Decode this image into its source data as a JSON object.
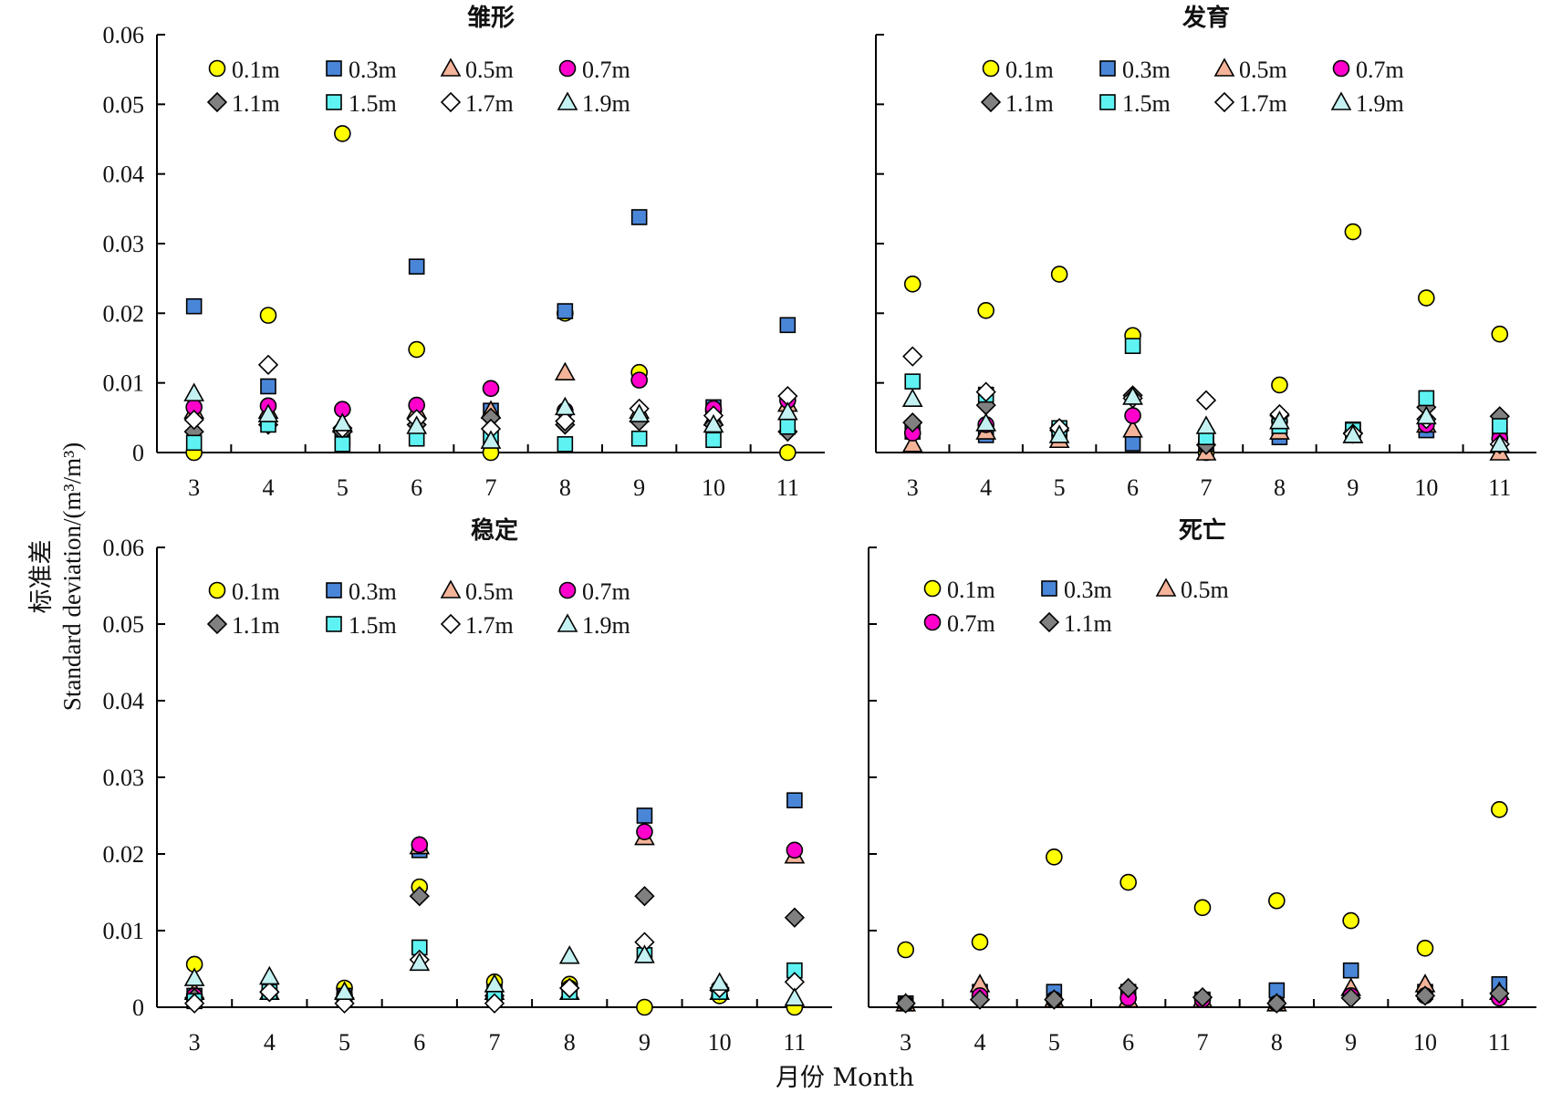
{
  "colors": {
    "0.1m": "#ffff00",
    "0.3m": "#4a86d8",
    "0.5m": "#f4b49a",
    "0.7m": "#ff00cc",
    "1.1m": "#808080",
    "1.5m": "#5ff2f2",
    "1.7m": "#ffffff",
    "1.9m": "#c4f2f2"
  },
  "shapes": {
    "0.1m": "circle",
    "0.3m": "square",
    "0.5m": "triangle",
    "0.7m": "circle",
    "1.1m": "diamond",
    "1.5m": "square",
    "1.7m": "diamond",
    "1.9m": "triangle"
  },
  "axes": {
    "xlabel": "月份 Month",
    "ylabel_cn": "标准差",
    "ylabel_en": "Standard deviation/(m³/m³)"
  },
  "chart_data": [
    {
      "type": "scatter",
      "title": "雏形",
      "x": [
        3,
        4,
        5,
        6,
        7,
        8,
        9,
        10,
        11
      ],
      "ylim": [
        0,
        0.06
      ],
      "yticks": [
        "0",
        "0.01",
        "0.02",
        "0.03",
        "0.04",
        "0.05",
        "0.06"
      ],
      "legend": "top",
      "series": [
        {
          "name": "0.1m",
          "values": [
            0.0,
            0.0197,
            0.0458,
            0.0148,
            0.0,
            0.02,
            0.0115,
            0.006,
            0.0
          ]
        },
        {
          "name": "0.3m",
          "values": [
            0.021,
            0.0095,
            0.002,
            0.0267,
            0.006,
            0.0203,
            0.0338,
            0.0065,
            0.0183
          ]
        },
        {
          "name": "0.5m",
          "values": [
            0.006,
            0.006,
            0.004,
            0.006,
            0.006,
            0.0115,
            0.006,
            0.005,
            0.007
          ]
        },
        {
          "name": "0.7m",
          "values": [
            0.0065,
            0.0067,
            0.0062,
            0.0068,
            0.0092,
            0.006,
            0.0104,
            0.0063,
            0.0075
          ]
        },
        {
          "name": "1.1m",
          "values": [
            0.003,
            0.004,
            0.003,
            0.004,
            0.005,
            0.004,
            0.0045,
            0.004,
            0.003
          ]
        },
        {
          "name": "1.5m",
          "values": [
            0.0014,
            0.004,
            0.0012,
            0.002,
            0.002,
            0.0012,
            0.002,
            0.0018,
            0.0037
          ]
        },
        {
          "name": "1.7m",
          "values": [
            0.0047,
            0.0126,
            0.0035,
            0.0048,
            0.0034,
            0.0045,
            0.0063,
            0.0053,
            0.0081
          ]
        },
        {
          "name": "1.9m",
          "values": [
            0.0085,
            0.0055,
            0.0042,
            0.0038,
            0.0017,
            0.0065,
            0.0055,
            0.004,
            0.0058
          ]
        }
      ]
    },
    {
      "type": "scatter",
      "title": "发育",
      "x": [
        3,
        4,
        5,
        6,
        7,
        8,
        9,
        10,
        11
      ],
      "ylim": [
        0,
        0.06
      ],
      "legend": "top",
      "series": [
        {
          "name": "0.1m",
          "values": [
            0.0242,
            0.0204,
            0.0256,
            0.0168,
            0.0,
            0.0097,
            0.0317,
            0.0222,
            0.017
          ]
        },
        {
          "name": "0.3m",
          "values": [
            0.003,
            0.0025,
            0.003,
            0.0013,
            0.0012,
            0.0022,
            0.0033,
            0.0032,
            0.0023
          ]
        },
        {
          "name": "0.5m",
          "values": [
            0.0012,
            0.003,
            0.0018,
            0.0033,
            0.0,
            0.003,
            0.0025,
            0.004,
            0.0
          ]
        },
        {
          "name": "0.7m",
          "values": [
            0.0028,
            0.004,
            0.0035,
            0.0053,
            0.0012,
            0.0045,
            0.003,
            0.004,
            0.002
          ]
        },
        {
          "name": "1.1m",
          "values": [
            0.0043,
            0.0068,
            0.0032,
            0.0082,
            0.0011,
            0.0053,
            0.0028,
            0.0065,
            0.0052
          ]
        },
        {
          "name": "1.5m",
          "values": [
            0.0102,
            0.0083,
            0.0035,
            0.0153,
            0.0022,
            0.0038,
            0.0032,
            0.0078,
            0.0038
          ]
        },
        {
          "name": "1.7m",
          "values": [
            0.0138,
            0.0087,
            0.0035,
            0.0078,
            0.0075,
            0.0055,
            0.0027,
            0.0048,
            0.0012
          ]
        },
        {
          "name": "1.9m",
          "values": [
            0.0077,
            0.0042,
            0.0025,
            0.008,
            0.0038,
            0.0045,
            0.0025,
            0.0052,
            0.0012
          ]
        }
      ]
    },
    {
      "type": "scatter",
      "title": "稳定",
      "x": [
        3,
        4,
        5,
        6,
        7,
        8,
        9,
        10,
        11
      ],
      "ylim": [
        0,
        0.06
      ],
      "yticks": [
        "0",
        "0.01",
        "0.02",
        "0.03",
        "0.04",
        "0.05",
        "0.06"
      ],
      "legend": "top",
      "series": [
        {
          "name": "0.1m",
          "values": [
            0.0056,
            0.002,
            0.0025,
            0.0157,
            0.0033,
            0.003,
            0.0,
            0.0015,
            0.0
          ]
        },
        {
          "name": "0.3m",
          "values": [
            0.0015,
            0.002,
            0.0015,
            0.0205,
            0.002,
            0.002,
            0.025,
            0.002,
            0.027
          ]
        },
        {
          "name": "0.5m",
          "values": [
            0.002,
            0.002,
            0.002,
            0.021,
            0.002,
            0.002,
            0.0222,
            0.002,
            0.0198
          ]
        },
        {
          "name": "0.7m",
          "values": [
            0.0015,
            0.002,
            0.0015,
            0.0212,
            0.002,
            0.0025,
            0.0229,
            0.0025,
            0.0205
          ]
        },
        {
          "name": "1.1m",
          "values": [
            0.0012,
            0.002,
            0.0012,
            0.0145,
            0.0015,
            0.0025,
            0.0145,
            0.0022,
            0.0117
          ]
        },
        {
          "name": "1.5m",
          "values": [
            0.0008,
            0.002,
            0.001,
            0.0078,
            0.0012,
            0.002,
            0.0068,
            0.002,
            0.0048
          ]
        },
        {
          "name": "1.7m",
          "values": [
            0.0005,
            0.002,
            0.0005,
            0.0062,
            0.0005,
            0.0025,
            0.0085,
            0.0025,
            0.0033
          ]
        },
        {
          "name": "1.9m",
          "values": [
            0.0038,
            0.004,
            0.002,
            0.0058,
            0.003,
            0.0067,
            0.0068,
            0.0032,
            0.0012
          ]
        }
      ]
    },
    {
      "type": "scatter",
      "title": "死亡",
      "x": [
        3,
        4,
        5,
        6,
        7,
        8,
        9,
        10,
        11
      ],
      "ylim": [
        0,
        0.06
      ],
      "legend": "top",
      "series": [
        {
          "name": "0.1m",
          "values": [
            0.0075,
            0.0085,
            0.0196,
            0.0163,
            0.013,
            0.0139,
            0.0113,
            0.0077,
            0.0258
          ]
        },
        {
          "name": "0.3m",
          "values": [
            0.0005,
            0.002,
            0.002,
            0.002,
            0.001,
            0.0022,
            0.0048,
            0.002,
            0.003
          ]
        },
        {
          "name": "0.5m",
          "values": [
            0.0005,
            0.003,
            0.001,
            0.001,
            0.001,
            0.0005,
            0.0025,
            0.003,
            0.002
          ]
        },
        {
          "name": "0.7m",
          "values": [
            0.0005,
            0.0015,
            0.001,
            0.0012,
            0.001,
            0.0005,
            0.0015,
            0.0015,
            0.0012
          ]
        },
        {
          "name": "1.1m",
          "values": [
            0.0005,
            0.001,
            0.001,
            0.0025,
            0.0013,
            0.0005,
            0.0012,
            0.0015,
            0.0018
          ]
        }
      ]
    }
  ]
}
